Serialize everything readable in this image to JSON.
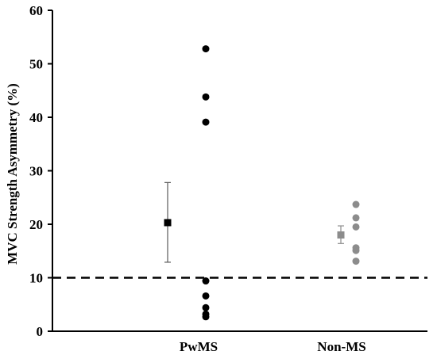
{
  "chart_data": {
    "type": "scatter",
    "title": "",
    "xlabel": "",
    "ylabel": "MVC Strength Asymmetry (%)",
    "ylim": [
      0,
      60
    ],
    "yticks": [
      0,
      10,
      20,
      30,
      40,
      50,
      60
    ],
    "grid": false,
    "categories": [
      "PwMS",
      "Non-MS"
    ],
    "series": [
      {
        "category": "PwMS",
        "color": "#000000",
        "points": [
          52.8,
          43.8,
          39.1,
          9.4,
          6.6,
          4.4,
          3.2,
          2.7
        ],
        "mean": 20.3,
        "error": [
          12.9,
          27.8
        ]
      },
      {
        "category": "Non-MS",
        "color": "#8c8c8c",
        "points": [
          23.7,
          21.2,
          19.5,
          15.6,
          15.1,
          13.1
        ],
        "mean": 18.0,
        "error": [
          16.4,
          19.7
        ]
      }
    ],
    "reference_line": {
      "value": 10,
      "style": "dashed",
      "color": "#000000"
    }
  }
}
